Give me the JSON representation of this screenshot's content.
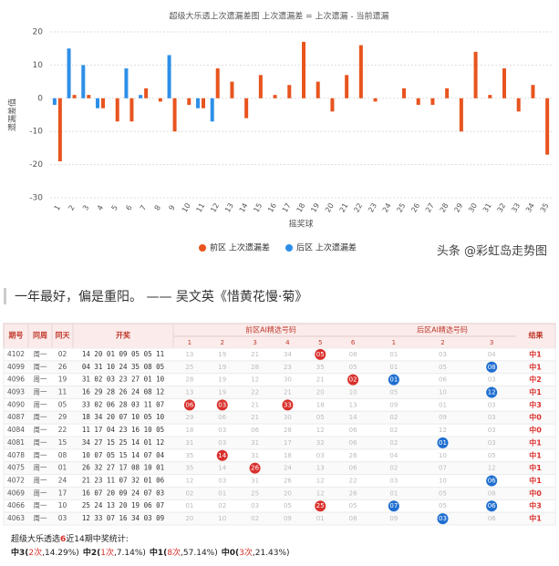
{
  "chart_data": {
    "type": "bar",
    "title": "超级大乐透上次遗漏差图 上次遗漏差 = 上次遗漏 - 当前遗漏",
    "x_label": "摇奖球",
    "y_label": "遗漏差值",
    "categories": [
      "1",
      "2",
      "3",
      "4",
      "5",
      "6",
      "7",
      "8",
      "9",
      "10",
      "11",
      "12",
      "13",
      "14",
      "15",
      "16",
      "17",
      "18",
      "19",
      "20",
      "21",
      "22",
      "23",
      "24",
      "25",
      "26",
      "27",
      "28",
      "29",
      "30",
      "31",
      "32",
      "33",
      "34",
      "35"
    ],
    "series": [
      {
        "name": "前区 上次遗漏差",
        "color": "#e8541e",
        "values": [
          -19,
          1,
          1,
          -3,
          -7,
          -7,
          3,
          -1,
          -10,
          -2,
          -3,
          9,
          5,
          -6,
          7,
          1,
          4,
          17,
          5,
          -4,
          7,
          16,
          -1,
          0,
          3,
          -2,
          -2,
          3,
          -10,
          14,
          1,
          9,
          -4,
          4,
          -17
        ]
      },
      {
        "name": "后区 上次遗漏差",
        "color": "#2e8fe8",
        "values": [
          -2,
          15,
          10,
          -3,
          0,
          9,
          1,
          0,
          13,
          0,
          -3,
          -7,
          null,
          null,
          null,
          null,
          null,
          null,
          null,
          null,
          null,
          null,
          null,
          null,
          null,
          null,
          null,
          null,
          null,
          null,
          null,
          null,
          null,
          null,
          null
        ]
      }
    ],
    "ylim": [
      -30,
      20
    ],
    "yticks": [
      -30,
      -20,
      -10,
      0,
      10,
      20
    ],
    "grid": true,
    "legend": "bottom",
    "watermark": "头条 @彩虹岛走势图"
  },
  "quote": "一年最好，偏是重阳。 —— 吴文英《惜黄花慢·菊》",
  "table": {
    "header": {
      "issue": "期号",
      "week": "同周",
      "day": "同天",
      "draw": "开奖",
      "front": "前区AI精选号码",
      "back": "后区AI精选号码",
      "result": "结果",
      "front_cols": [
        "1",
        "2",
        "3",
        "4",
        "5",
        "6"
      ],
      "back_cols": [
        "1",
        "2",
        "3"
      ]
    },
    "rows": [
      {
        "issue": "4102",
        "week": "周一",
        "day": "02",
        "draw": "14 20 01 09 05 05 11",
        "front": [
          "13",
          "19",
          "21",
          "34",
          "05",
          "08"
        ],
        "back": [
          "01",
          "03",
          "04"
        ],
        "front_hit": [
          4
        ],
        "back_hit": [],
        "result": "中1"
      },
      {
        "issue": "4099",
        "week": "周一",
        "day": "26",
        "draw": "04 31 10 24 35 08 05",
        "front": [
          "25",
          "19",
          "28",
          "23",
          "35",
          "05"
        ],
        "back": [
          "01",
          "05",
          "08"
        ],
        "front_hit": [],
        "back_hit": [
          2
        ],
        "result": "中1"
      },
      {
        "issue": "4096",
        "week": "周一",
        "day": "19",
        "draw": "31 02 03 23 27 01 10",
        "front": [
          "28",
          "19",
          "12",
          "30",
          "21",
          "02"
        ],
        "back": [
          "01",
          "06",
          "03"
        ],
        "front_hit": [
          5
        ],
        "back_hit": [
          0
        ],
        "result": "中2"
      },
      {
        "issue": "4093",
        "week": "周一",
        "day": "11",
        "draw": "16 29 28 26 24 08 12",
        "front": [
          "13",
          "19",
          "22",
          "21",
          "20",
          "10"
        ],
        "back": [
          "05",
          "10",
          "12"
        ],
        "front_hit": [],
        "back_hit": [
          2
        ],
        "result": "中1"
      },
      {
        "issue": "4090",
        "week": "周一",
        "day": "05",
        "draw": "33 02 06 28 03 11 07",
        "front": [
          "06",
          "03",
          "21",
          "33",
          "18",
          "13"
        ],
        "back": [
          "09",
          "01",
          "03"
        ],
        "front_hit": [
          0,
          1,
          3
        ],
        "back_hit": [],
        "result": "中3"
      },
      {
        "issue": "4087",
        "week": "周一",
        "day": "29",
        "draw": "18 34 20 07 10 05 10",
        "front": [
          "29",
          "06",
          "21",
          "30",
          "05",
          "14"
        ],
        "back": [
          "02",
          "09",
          "03"
        ],
        "front_hit": [],
        "back_hit": [],
        "result": "中0"
      },
      {
        "issue": "4084",
        "week": "周一",
        "day": "22",
        "draw": "11 17 04 23 16 10 05",
        "front": [
          "18",
          "03",
          "06",
          "28",
          "12",
          "06"
        ],
        "back": [
          "02",
          "12",
          "03"
        ],
        "front_hit": [],
        "back_hit": [],
        "result": "中0"
      },
      {
        "issue": "4081",
        "week": "周一",
        "day": "15",
        "draw": "34 27 15 25 14 01 12",
        "front": [
          "31",
          "03",
          "31",
          "17",
          "32",
          "06"
        ],
        "back": [
          "02",
          "01",
          "03"
        ],
        "front_hit": [],
        "back_hit": [
          1
        ],
        "result": "中1"
      },
      {
        "issue": "4078",
        "week": "周一",
        "day": "08",
        "draw": "10 07 05 15 14 07 04",
        "front": [
          "35",
          "14",
          "31",
          "18",
          "03",
          "26"
        ],
        "back": [
          "04",
          "10",
          "05"
        ],
        "front_hit": [
          1
        ],
        "back_hit": [],
        "result": "中1"
      },
      {
        "issue": "4075",
        "week": "周一",
        "day": "01",
        "draw": "26 32 27 17 08 10 01",
        "front": [
          "35",
          "14",
          "26",
          "24",
          "13",
          "06"
        ],
        "back": [
          "02",
          "07",
          "12"
        ],
        "front_hit": [
          2
        ],
        "back_hit": [],
        "result": "中1"
      },
      {
        "issue": "4072",
        "week": "周一",
        "day": "24",
        "draw": "21 23 11 07 32 01 06",
        "front": [
          "12",
          "03",
          "31",
          "26",
          "12",
          "22"
        ],
        "back": [
          "03",
          "10",
          "06"
        ],
        "front_hit": [],
        "back_hit": [
          2
        ],
        "result": "中1"
      },
      {
        "issue": "4069",
        "week": "周一",
        "day": "17",
        "draw": "16 07 20 09 24 07 03",
        "front": [
          "02",
          "01",
          "25",
          "20",
          "12",
          "26"
        ],
        "back": [
          "01",
          "05",
          "08"
        ],
        "front_hit": [],
        "back_hit": [],
        "result": "中0"
      },
      {
        "issue": "4066",
        "week": "周一",
        "day": "10",
        "draw": "25 24 13 20 19 06 07",
        "front": [
          "01",
          "02",
          "03",
          "05",
          "25",
          "05"
        ],
        "back": [
          "07",
          "05",
          "06"
        ],
        "front_hit": [
          4
        ],
        "back_hit": [
          0,
          2
        ],
        "result": "中3"
      },
      {
        "issue": "4063",
        "week": "周一",
        "day": "03",
        "draw": "12 33 07 16 34 03 09",
        "front": [
          "20",
          "10",
          "02",
          "09",
          "01",
          "08"
        ],
        "back": [
          "09",
          "03",
          "06"
        ],
        "front_hit": [],
        "back_hit": [
          1
        ],
        "result": "中1"
      }
    ]
  },
  "stats": {
    "title": [
      "超级大乐透选",
      "6",
      "近14期中奖统计:"
    ],
    "items": [
      {
        "label": "中3(",
        "count": "2次",
        "rest": ",14.29%)"
      },
      {
        "label": "中2(",
        "count": "1次",
        "rest": ",7.14%)"
      },
      {
        "label": "中1(",
        "count": "8次",
        "rest": ",57.14%)"
      },
      {
        "label": "中0(",
        "count": "3次",
        "rest": ",21.43%)"
      }
    ]
  }
}
